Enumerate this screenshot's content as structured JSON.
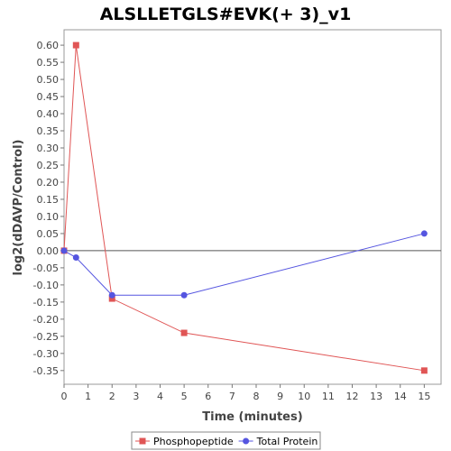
{
  "chart_data": {
    "type": "line",
    "title": "ALSLLETGLS#EVK(+ 3)_v1",
    "xlabel": "Time (minutes)",
    "ylabel": "log2(dDAVP/Control)",
    "xlim": [
      0,
      15.7
    ],
    "ylim": [
      -0.39,
      0.645
    ],
    "x_ticks": [
      0,
      1,
      2,
      3,
      4,
      5,
      6,
      7,
      8,
      9,
      10,
      11,
      12,
      13,
      14,
      15
    ],
    "y_ticks": [
      0.6,
      0.55,
      0.5,
      0.45,
      0.4,
      0.35,
      0.3,
      0.25,
      0.2,
      0.15,
      0.1,
      0.05,
      0.0,
      -0.05,
      -0.1,
      -0.15,
      -0.2,
      -0.25,
      -0.3,
      -0.35
    ],
    "y_tick_labels": [
      "0.60",
      "0.55",
      "0.50",
      "0.45",
      "0.40",
      "0.35",
      "0.30",
      "0.25",
      "0.20",
      "0.15",
      "0.10",
      "0.05",
      "0.00",
      "-0.05",
      "-0.10",
      "-0.15",
      "-0.20",
      "-0.25",
      "-0.30",
      "-0.35"
    ],
    "zero_line": true,
    "grid": false,
    "legend_position": "bottom",
    "series": [
      {
        "name": "Phosphopeptide",
        "color": "#e05555",
        "marker": "square",
        "x": [
          0,
          0.5,
          2,
          5,
          15
        ],
        "y": [
          0.0,
          0.6,
          -0.14,
          -0.24,
          -0.35
        ]
      },
      {
        "name": "Total Protein",
        "color": "#5555e0",
        "marker": "circle",
        "x": [
          0,
          0.5,
          2,
          5,
          15
        ],
        "y": [
          0.0,
          -0.02,
          -0.13,
          -0.13,
          0.05
        ]
      }
    ]
  }
}
